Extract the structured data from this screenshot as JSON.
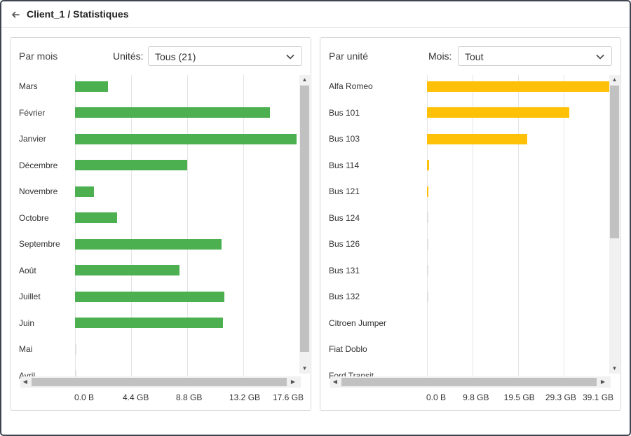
{
  "header": {
    "title": "Client_1 / Statistiques"
  },
  "left_panel": {
    "title": "Par mois",
    "filter_label": "Unités:",
    "filter_value": "Tous (21)"
  },
  "right_panel": {
    "title": "Par unité",
    "filter_label": "Mois:",
    "filter_value": "Tout"
  },
  "colors": {
    "left_bar": "#4caf50",
    "right_bar": "#ffc107",
    "border": "#3e4551"
  },
  "icons": {
    "back": "arrow-left-icon",
    "dropdown": "chevron-down-icon"
  },
  "chart_data": [
    {
      "type": "bar",
      "orientation": "horizontal",
      "title": "Par mois",
      "categories": [
        "Mars",
        "Février",
        "Janvier",
        "Décembre",
        "Novembre",
        "Octobre",
        "Septembre",
        "Août",
        "Juillet",
        "Juin",
        "Mai",
        "Avril"
      ],
      "values": [
        2.6,
        15.3,
        17.4,
        8.8,
        1.5,
        3.3,
        11.5,
        8.2,
        11.7,
        11.6,
        0.1,
        0.1
      ],
      "unit": "GB",
      "xlim": [
        0,
        17.6
      ],
      "tick_values": [
        0,
        4.4,
        8.8,
        13.2,
        17.6
      ],
      "tick_labels": [
        "0.0 B",
        "4.4 GB",
        "8.8 GB",
        "13.2 GB",
        "17.6 GB"
      ]
    },
    {
      "type": "bar",
      "orientation": "horizontal",
      "title": "Par unité",
      "categories": [
        "Alfa Romeo",
        "Bus 101",
        "Bus 103",
        "Bus 114",
        "Bus 121",
        "Bus 124",
        "Bus 126",
        "Bus 131",
        "Bus 132",
        "Citroen Jumper",
        "Fiat Doblo",
        "Ford Transit"
      ],
      "values": [
        39.1,
        30.6,
        21.5,
        0.4,
        0.3,
        0.1,
        0.1,
        0.1,
        0.1,
        0,
        0,
        0
      ],
      "unit": "GB",
      "xlim": [
        0,
        39.1
      ],
      "tick_values": [
        0,
        9.8,
        19.5,
        29.3,
        39.1
      ],
      "tick_labels": [
        "0.0 B",
        "9.8 GB",
        "19.5 GB",
        "29.3 GB",
        "39.1 GB"
      ]
    }
  ]
}
